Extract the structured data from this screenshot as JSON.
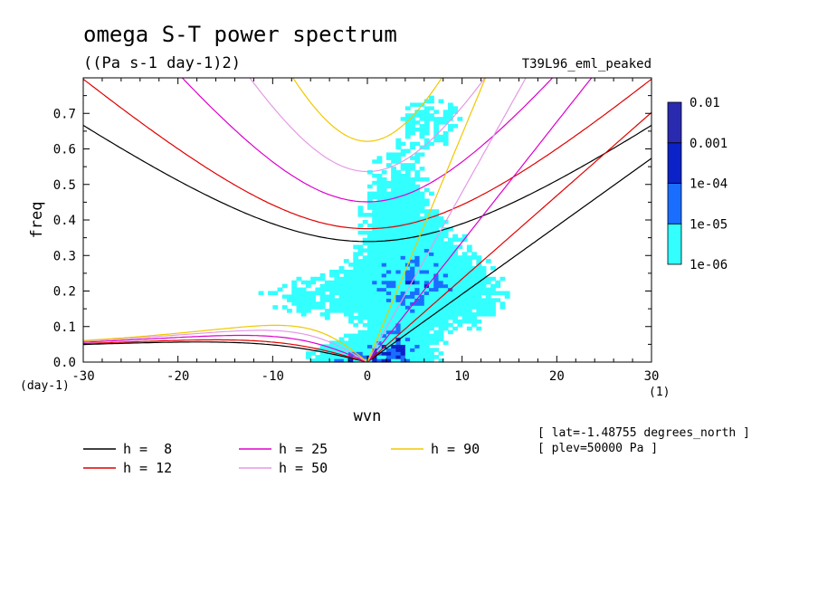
{
  "chart_data": {
    "type": "heatmap",
    "title": "omega S-T power spectrum",
    "subtitle": "((Pa s-1 day-1)2)",
    "run_label": "T39L96_eml_peaked",
    "xlabel": "wvn",
    "ylabel": "freq",
    "x_unit": "(1)",
    "y_unit": "(day-1)",
    "xlim": [
      -30,
      30
    ],
    "ylim": [
      0,
      0.8
    ],
    "x_ticks": [
      "-30",
      "-20",
      "-10",
      "0",
      "10",
      "20",
      "30"
    ],
    "y_ticks": [
      "0.0",
      "0.1",
      "0.2",
      "0.3",
      "0.4",
      "0.5",
      "0.6",
      "0.7"
    ],
    "colorbar": {
      "levels": [
        "1e-06",
        "1e-05",
        "1e-04",
        "0.001",
        "0.01"
      ],
      "colors": [
        "#33ffff",
        "#1a6eff",
        "#0a22c8",
        "#2a2ab0",
        "#4a1aa8"
      ]
    },
    "dispersion_curves": [
      {
        "name": "h =  8",
        "h": 8,
        "color": "#000000"
      },
      {
        "name": "h = 12",
        "h": 12,
        "color": "#e00000"
      },
      {
        "name": "h = 25",
        "h": 25,
        "color": "#dd00cc"
      },
      {
        "name": "h = 50",
        "h": 50,
        "color": "#e49ae4"
      },
      {
        "name": "h = 90",
        "h": 90,
        "color": "#f0c800"
      }
    ],
    "notes": [
      "[ lat=-1.48755 degrees_north ]",
      "[ plev=50000 Pa ]"
    ]
  }
}
